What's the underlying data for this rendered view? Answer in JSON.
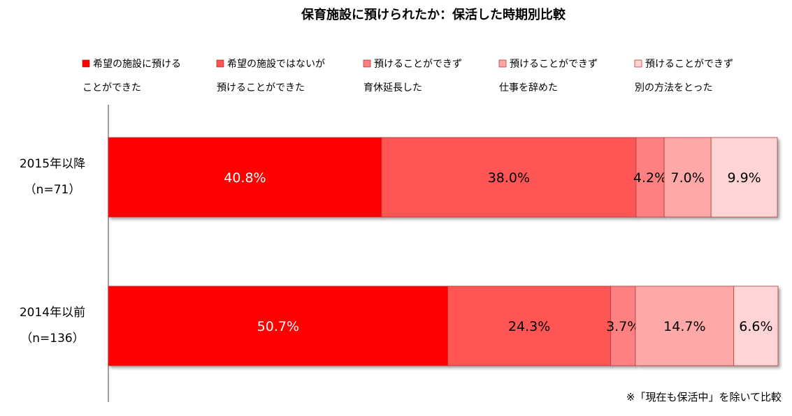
{
  "chart_data": {
    "type": "bar",
    "orientation": "horizontal",
    "stacked": true,
    "percent_stacked": true,
    "title": "保育施設に預けられたか：保活した時期別比較",
    "categories": [
      {
        "name": "2015年以降",
        "n": "（n=71）"
      },
      {
        "name": "2014年以前",
        "n": "（n=136）"
      }
    ],
    "series": [
      {
        "name": [
          "希望の施設に預ける",
          "ことができた"
        ],
        "color": "#ff0000",
        "values": [
          40.8,
          50.7
        ],
        "labels": [
          "40.8%",
          "50.7%"
        ],
        "label_color": "#ffffff"
      },
      {
        "name": [
          "希望の施設ではないが",
          "預けることができた"
        ],
        "color": "#ff5555",
        "values": [
          38.0,
          24.3
        ],
        "labels": [
          "38.0%",
          "24.3%"
        ],
        "label_color": "#000000"
      },
      {
        "name": [
          "預けることができず",
          "育休延長した"
        ],
        "color": "#ff8080",
        "values": [
          4.2,
          3.7
        ],
        "labels": [
          "4.2%",
          "3.7%"
        ],
        "label_color": "#000000"
      },
      {
        "name": [
          "預けることができず",
          "仕事を辞めた"
        ],
        "color": "#ffa8a8",
        "values": [
          7.0,
          14.7
        ],
        "labels": [
          "7.0%",
          "14.7%"
        ],
        "label_color": "#000000"
      },
      {
        "name": [
          "預けることができず",
          "別の方法をとった"
        ],
        "color": "#ffd4d4",
        "values": [
          9.9,
          6.6
        ],
        "labels": [
          "9.9%",
          "6.6%"
        ],
        "label_color": "#000000"
      }
    ],
    "xlim": [
      0,
      100
    ],
    "grid": false,
    "legend_position": "top",
    "note": "※「現在も保活中」を除いて比較"
  }
}
